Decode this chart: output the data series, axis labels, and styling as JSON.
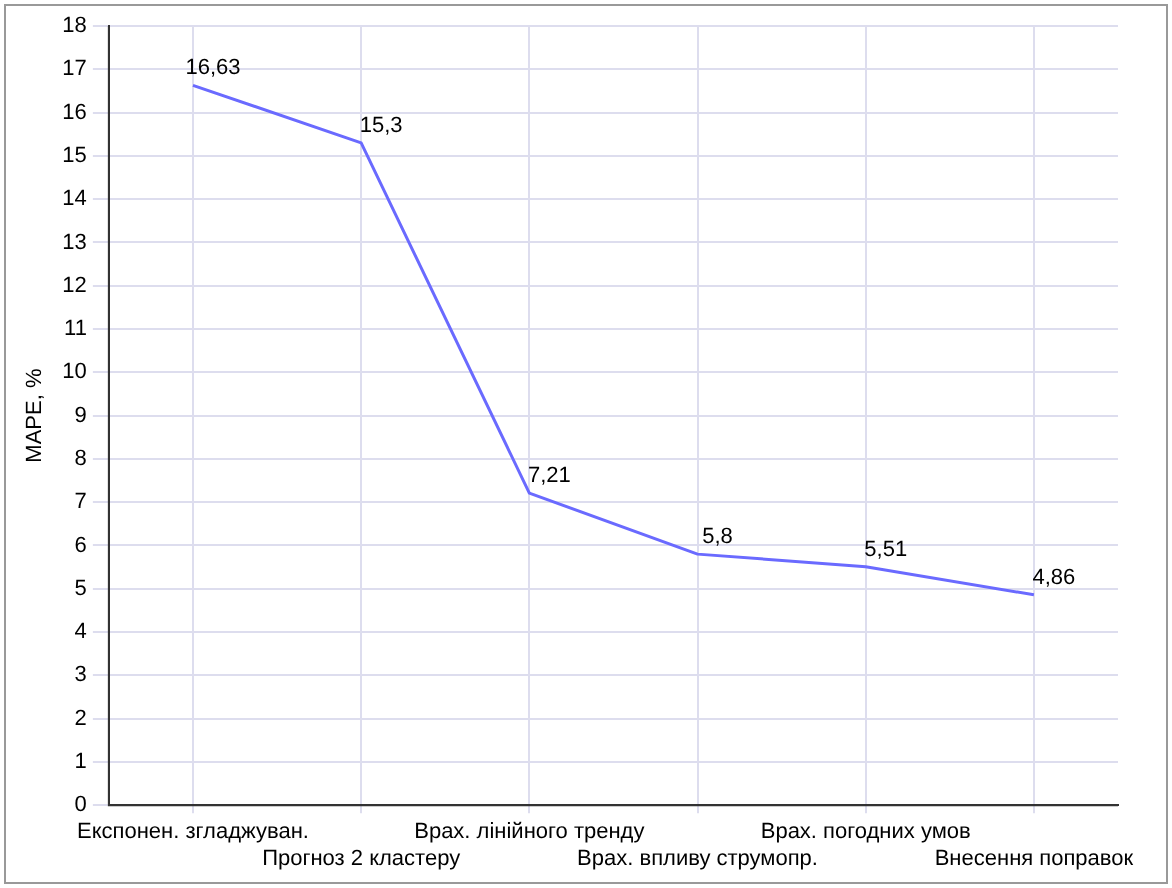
{
  "chart_data": {
    "type": "line",
    "ylabel": "MAPE, %",
    "categories": [
      "Експонен. згладжуван.",
      "Прогноз 2 кластеру",
      "Врах. лінійного тренду",
      "Врах. впливу струмопр.",
      "Врах. погодних умов",
      "Внесення поправок"
    ],
    "series": [
      {
        "color": "#6a6aff",
        "values": [
          16.63,
          15.3,
          7.21,
          5.8,
          5.51,
          4.86
        ],
        "value_labels": [
          "16,63",
          "15,3",
          "7,21",
          "5,8",
          "5,51",
          "4,86"
        ]
      }
    ],
    "ylim": [
      0,
      18
    ],
    "yticks": [
      0,
      1,
      2,
      3,
      4,
      5,
      6,
      7,
      8,
      9,
      10,
      11,
      12,
      13,
      14,
      15,
      16,
      17,
      18
    ],
    "grid": true,
    "legend": false,
    "marker": "none",
    "line_style": "solid"
  }
}
